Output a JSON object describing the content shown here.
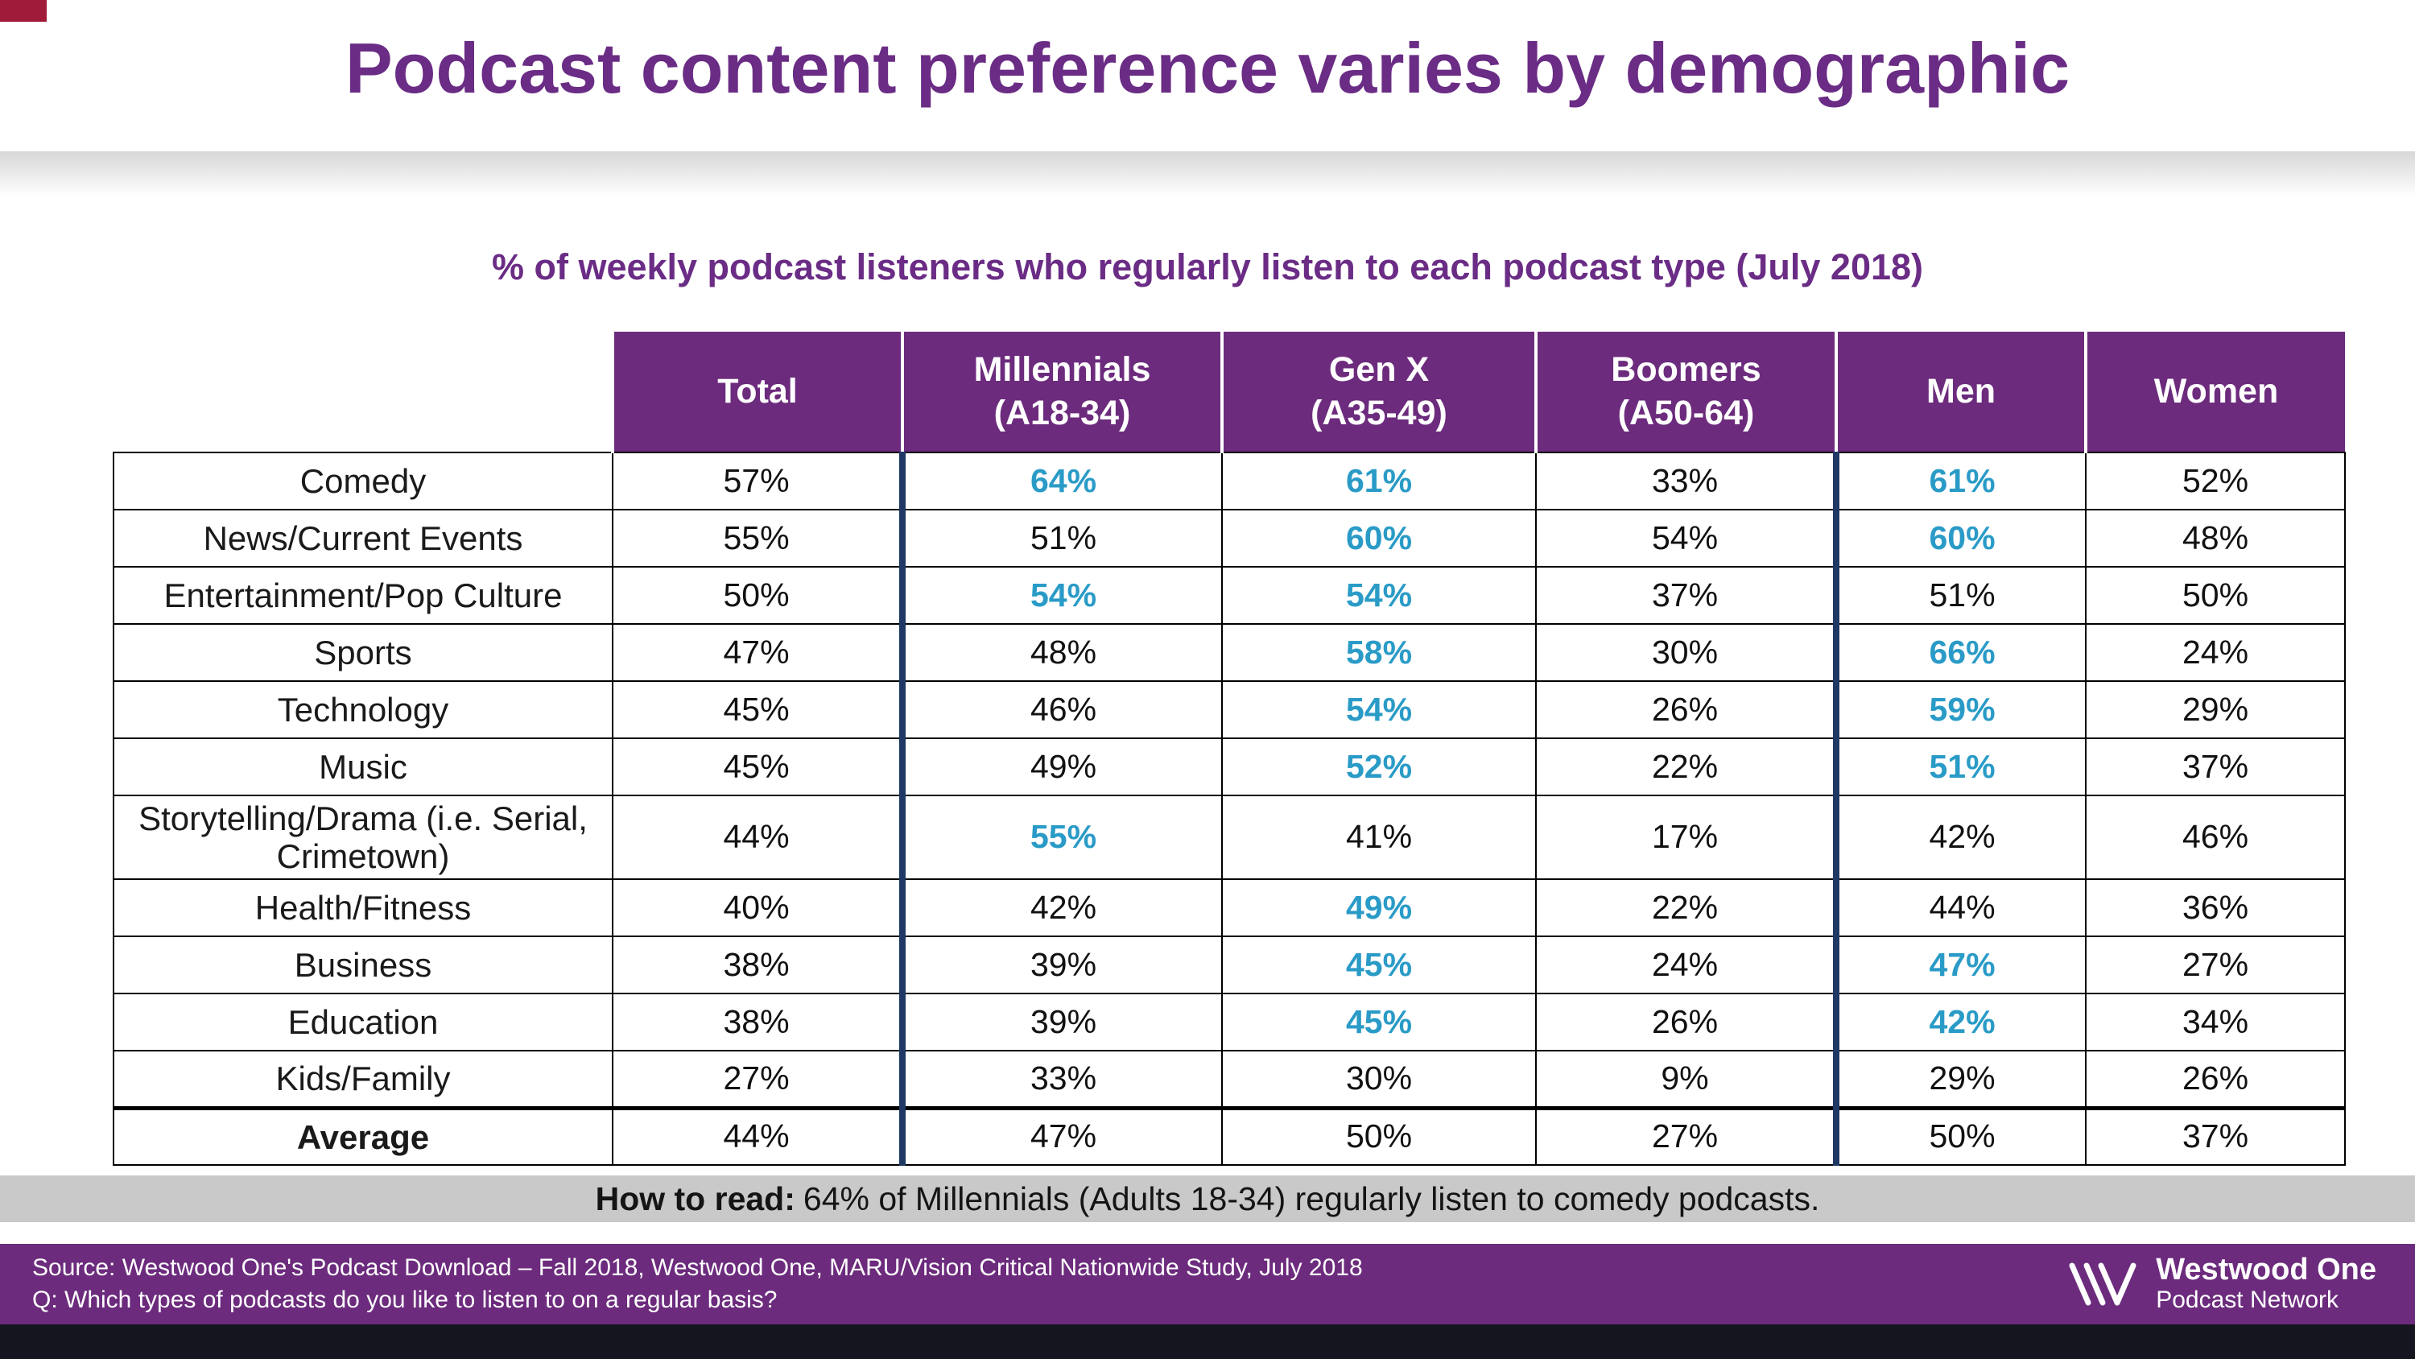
{
  "slide": {
    "title": "Podcast content preference varies by demographic",
    "subtitle": "% of weekly podcast listeners who regularly listen to each podcast type (July 2018)",
    "how_to_read_label": "How to read:",
    "how_to_read_text": "64% of Millennials (Adults 18-34) regularly listen to comedy podcasts.",
    "source_line": "Source: Westwood One's Podcast Download – Fall 2018, Westwood One, MARU/Vision Critical Nationwide Study, July 2018",
    "question_line": "Q: Which types of podcasts do you like to listen to on a regular basis?",
    "logo": {
      "name": "Westwood One",
      "subtitle": "Podcast Network"
    }
  },
  "colors": {
    "purple": "#6C2B7D",
    "title_purple": "#6A2C85",
    "highlight_blue": "#2A9BC7",
    "divider_navy": "#1F3864",
    "gray_bar": "#C9C9C9",
    "corner_flag": "#A01B3A",
    "bottom_strip": "#15151F"
  },
  "chart_data": {
    "type": "table",
    "title": "% of weekly podcast listeners who regularly listen to each podcast type (July 2018)",
    "unit": "%",
    "columns": [
      "Total",
      "Millennials\n(A18-34)",
      "Gen X\n(A35-49)",
      "Boomers\n(A50-64)",
      "Men",
      "Women"
    ],
    "rows": [
      {
        "label": "Comedy",
        "values": [
          57,
          64,
          61,
          33,
          61,
          52
        ],
        "highlight": [
          0,
          1,
          1,
          0,
          1,
          0
        ],
        "emphasis": false
      },
      {
        "label": "News/Current Events",
        "values": [
          55,
          51,
          60,
          54,
          60,
          48
        ],
        "highlight": [
          0,
          0,
          1,
          0,
          1,
          0
        ],
        "emphasis": false
      },
      {
        "label": "Entertainment/Pop Culture",
        "values": [
          50,
          54,
          54,
          37,
          51,
          50
        ],
        "highlight": [
          0,
          1,
          1,
          0,
          0,
          0
        ],
        "emphasis": false
      },
      {
        "label": "Sports",
        "values": [
          47,
          48,
          58,
          30,
          66,
          24
        ],
        "highlight": [
          0,
          0,
          1,
          0,
          1,
          0
        ],
        "emphasis": false
      },
      {
        "label": "Technology",
        "values": [
          45,
          46,
          54,
          26,
          59,
          29
        ],
        "highlight": [
          0,
          0,
          1,
          0,
          1,
          0
        ],
        "emphasis": false
      },
      {
        "label": "Music",
        "values": [
          45,
          49,
          52,
          22,
          51,
          37
        ],
        "highlight": [
          0,
          0,
          1,
          0,
          1,
          0
        ],
        "emphasis": false
      },
      {
        "label": "Storytelling/Drama (i.e. Serial, Crimetown)",
        "values": [
          44,
          55,
          41,
          17,
          42,
          46
        ],
        "highlight": [
          0,
          1,
          0,
          0,
          0,
          0
        ],
        "emphasis": false
      },
      {
        "label": "Health/Fitness",
        "values": [
          40,
          42,
          49,
          22,
          44,
          36
        ],
        "highlight": [
          0,
          0,
          1,
          0,
          0,
          0
        ],
        "emphasis": false
      },
      {
        "label": "Business",
        "values": [
          38,
          39,
          45,
          24,
          47,
          27
        ],
        "highlight": [
          0,
          0,
          1,
          0,
          1,
          0
        ],
        "emphasis": false
      },
      {
        "label": "Education",
        "values": [
          38,
          39,
          45,
          26,
          42,
          34
        ],
        "highlight": [
          0,
          0,
          1,
          0,
          1,
          0
        ],
        "emphasis": false
      },
      {
        "label": "Kids/Family",
        "values": [
          27,
          33,
          30,
          9,
          29,
          26
        ],
        "highlight": [
          0,
          0,
          0,
          0,
          0,
          0
        ],
        "emphasis": false
      },
      {
        "label": "Average",
        "values": [
          44,
          47,
          50,
          27,
          50,
          37
        ],
        "highlight": [
          0,
          0,
          0,
          0,
          0,
          0
        ],
        "emphasis": true
      }
    ]
  }
}
